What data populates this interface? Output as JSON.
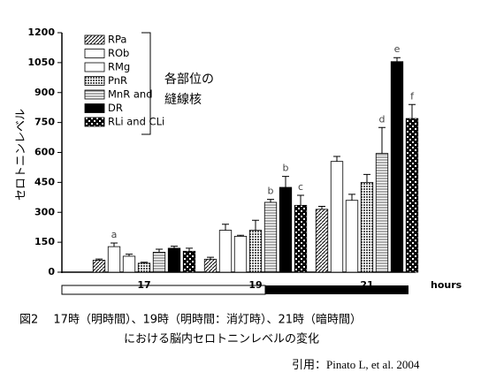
{
  "chart_data": {
    "type": "bar",
    "y_label": "セロトニンレベル",
    "x_label": "hours",
    "categories": [
      "17",
      "19",
      "21"
    ],
    "ylim": [
      0,
      1200
    ],
    "yticks": [
      0,
      150,
      300,
      450,
      600,
      750,
      900,
      1050,
      1200
    ],
    "series": [
      {
        "name": "RPa",
        "pattern": "diagonal",
        "values": [
          60,
          65,
          315
        ],
        "errors": [
          6,
          10,
          15
        ],
        "labels": [
          null,
          null,
          null
        ]
      },
      {
        "name": "ROb",
        "pattern": "white",
        "values": [
          128,
          210,
          555
        ],
        "errors": [
          18,
          30,
          25
        ],
        "labels": [
          "a",
          null,
          null
        ]
      },
      {
        "name": "RMg",
        "pattern": "white",
        "values": [
          80,
          180,
          360
        ],
        "errors": [
          10,
          5,
          30
        ],
        "labels": [
          null,
          null,
          null
        ]
      },
      {
        "name": "PnR",
        "pattern": "dots",
        "values": [
          45,
          210,
          450
        ],
        "errors": [
          5,
          50,
          40
        ],
        "labels": [
          null,
          null,
          null
        ]
      },
      {
        "name": "MnR and",
        "pattern": "horizontal",
        "values": [
          100,
          350,
          595
        ],
        "errors": [
          15,
          15,
          130
        ],
        "labels": [
          null,
          "b",
          "d"
        ]
      },
      {
        "name": "DR",
        "pattern": "black",
        "values": [
          120,
          425,
          1055
        ],
        "errors": [
          10,
          55,
          20
        ],
        "labels": [
          null,
          "b",
          "e"
        ]
      },
      {
        "name": "RLi and CLi",
        "pattern": "checker",
        "values": [
          105,
          335,
          770
        ],
        "errors": [
          15,
          50,
          70
        ],
        "labels": [
          null,
          "c",
          "f"
        ]
      }
    ],
    "note_lines": [
      "各部位の",
      "縫線核"
    ],
    "caption": [
      "図2　 17時（明時間）、19時（明時間：消灯時）、21時（暗時間）",
      "における脳内セロトニンレベルの変化"
    ],
    "citation": "引用：Pinato L, et al. 2004"
  }
}
